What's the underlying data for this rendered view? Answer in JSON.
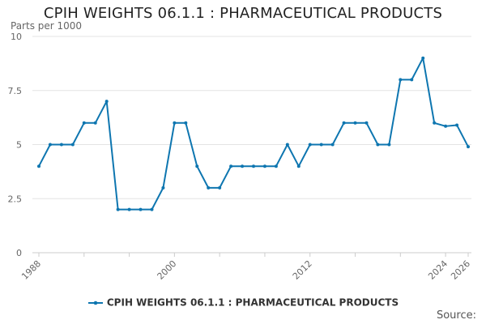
{
  "chart_data": {
    "type": "line",
    "title": "CPIH WEIGHTS 06.1.1 : PHARMACEUTICAL PRODUCTS",
    "ylabel": "Parts per 1000",
    "xlabel": "",
    "x": [
      1988,
      1989,
      1990,
      1991,
      1992,
      1993,
      1994,
      1995,
      1996,
      1997,
      1998,
      1999,
      2000,
      2001,
      2002,
      2003,
      2004,
      2005,
      2006,
      2007,
      2008,
      2009,
      2010,
      2011,
      2012,
      2013,
      2014,
      2015,
      2016,
      2017,
      2018,
      2019,
      2020,
      2021,
      2022,
      2023,
      2024,
      2025,
      2026
    ],
    "series": [
      {
        "name": "CPIH WEIGHTS 06.1.1 : PHARMACEUTICAL PRODUCTS",
        "values": [
          4,
          5,
          5,
          5,
          6,
          6,
          7,
          2,
          2,
          2,
          2,
          3,
          6,
          6,
          4,
          3,
          3,
          4,
          4,
          4,
          4,
          4,
          5,
          4,
          5,
          5,
          5,
          6,
          6,
          6,
          5,
          5,
          8,
          8,
          9,
          6,
          5.85,
          5.9,
          4.9
        ]
      }
    ],
    "ylim": [
      0,
      10
    ],
    "xlim": [
      1988,
      2026
    ],
    "yticks": [
      {
        "value": 0,
        "label": "0"
      },
      {
        "value": 2.5,
        "label": "2.5"
      },
      {
        "value": 5,
        "label": "5"
      },
      {
        "value": 7.5,
        "label": "7.5"
      },
      {
        "value": 10,
        "label": "10"
      }
    ],
    "xtick_labels": [
      {
        "value": 1988,
        "label": "1988"
      },
      {
        "value": 2000,
        "label": "2000"
      },
      {
        "value": 2012,
        "label": "2012"
      },
      {
        "value": 2024,
        "label": "2024"
      },
      {
        "value": 2026,
        "label": "2026"
      }
    ],
    "grid": "horizontal",
    "legend_position": "bottom-center",
    "line_color": "#0e76b0"
  },
  "footer": {
    "source_label": "Source:"
  }
}
